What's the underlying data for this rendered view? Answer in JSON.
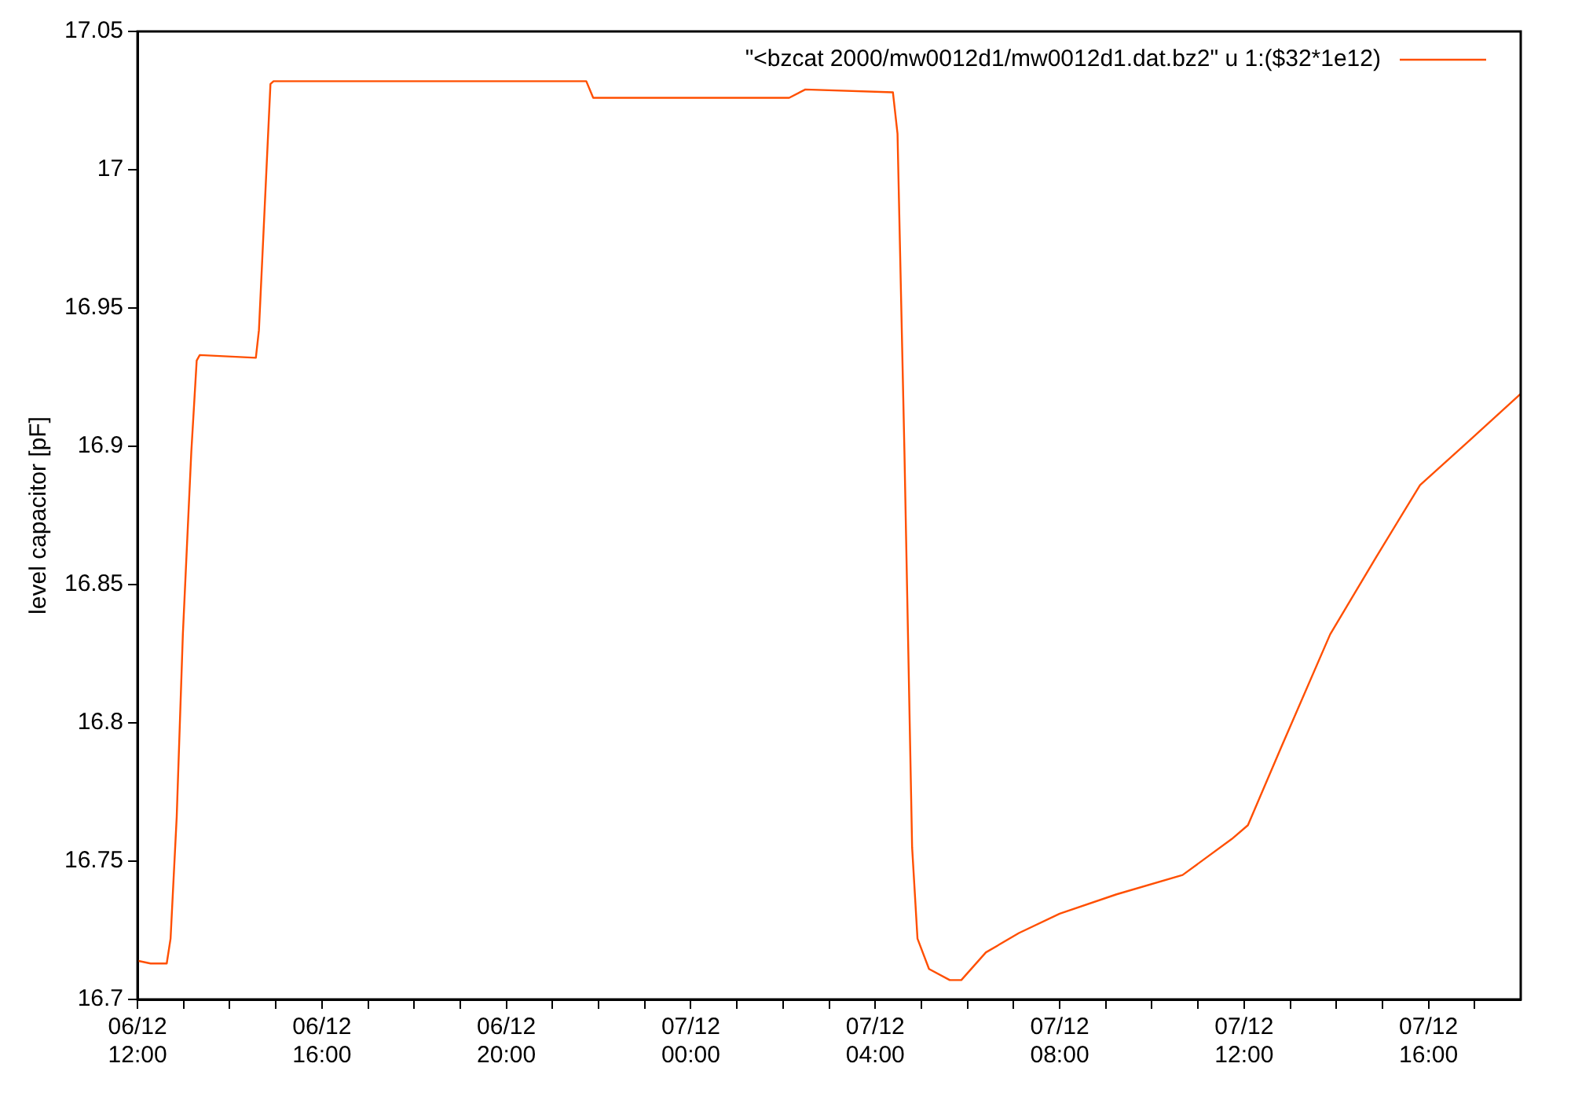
{
  "chart_data": {
    "type": "line",
    "ylabel": "level capacitor [pF]",
    "legend": "top right",
    "grid": false,
    "marker": "none",
    "line_style": "solid",
    "xlim": [
      "--12-06T12:00",
      "--12-07T18:00"
    ],
    "xticks": [
      {
        "value": "--12-06T12:00",
        "label": "06/12\n12:00"
      },
      {
        "value": "--12-06T13:00",
        "label": null
      },
      {
        "value": "--12-06T14:00",
        "label": null
      },
      {
        "value": "--12-06T15:00",
        "label": null
      },
      {
        "value": "--12-06T16:00",
        "label": "06/12\n16:00"
      },
      {
        "value": "--12-06T17:00",
        "label": null
      },
      {
        "value": "--12-06T18:00",
        "label": null
      },
      {
        "value": "--12-06T19:00",
        "label": null
      },
      {
        "value": "--12-06T20:00",
        "label": "06/12\n20:00"
      },
      {
        "value": "--12-06T21:00",
        "label": null
      },
      {
        "value": "--12-06T22:00",
        "label": null
      },
      {
        "value": "--12-06T23:00",
        "label": null
      },
      {
        "value": "--12-07T00:00",
        "label": "07/12\n00:00"
      },
      {
        "value": "--12-07T01:00",
        "label": null
      },
      {
        "value": "--12-07T02:00",
        "label": null
      },
      {
        "value": "--12-07T03:00",
        "label": null
      },
      {
        "value": "--12-07T04:00",
        "label": "07/12\n04:00"
      },
      {
        "value": "--12-07T05:00",
        "label": null
      },
      {
        "value": "--12-07T06:00",
        "label": null
      },
      {
        "value": "--12-07T07:00",
        "label": null
      },
      {
        "value": "--12-07T08:00",
        "label": "07/12\n08:00"
      },
      {
        "value": "--12-07T09:00",
        "label": null
      },
      {
        "value": "--12-07T10:00",
        "label": null
      },
      {
        "value": "--12-07T11:00",
        "label": null
      },
      {
        "value": "--12-07T12:00",
        "label": "07/12\n12:00"
      },
      {
        "value": "--12-07T13:00",
        "label": null
      },
      {
        "value": "--12-07T14:00",
        "label": null
      },
      {
        "value": "--12-07T15:00",
        "label": null
      },
      {
        "value": "--12-07T16:00",
        "label": "07/12\n16:00"
      },
      {
        "value": "--12-07T17:00",
        "label": null
      }
    ],
    "ylim": [
      16.7,
      17.05
    ],
    "yticks": [
      16.7,
      16.75,
      16.8,
      16.85,
      16.9,
      16.95,
      17,
      17.05
    ],
    "series": [
      {
        "name": "\"<bzcat 2000/mw0012d1/mw0012d1.dat.bz2\" u 1:($32*1e12)",
        "color": "#ff4f00",
        "x": [
          "--12-06T12:00",
          "--12-06T12:17",
          "--12-06T12:38",
          "--12-06T12:43",
          "--12-06T12:51",
          "--12-06T12:59",
          "--12-06T13:10",
          "--12-06T13:17",
          "--12-06T13:21",
          "--12-06T14:34",
          "--12-06T14:38",
          "--12-06T14:53",
          "--12-06T14:57",
          "--12-06T21:44",
          "--12-06T21:53",
          "--12-07T02:08",
          "--12-07T02:29",
          "--12-07T04:23",
          "--12-07T04:29",
          "--12-07T04:38",
          "--12-07T04:48",
          "--12-07T04:55",
          "--12-07T05:10",
          "--12-07T05:37",
          "--12-07T05:52",
          "--12-07T06:24",
          "--12-07T07:07",
          "--12-07T08:00",
          "--12-07T09:14",
          "--12-07T10:40",
          "--12-07T11:44",
          "--12-07T12:05",
          "--12-07T12:48",
          "--12-07T13:52",
          "--12-07T14:52",
          "--12-07T15:49",
          "--12-07T16:53",
          "--12-07T18:00"
        ],
        "values": [
          16.714,
          16.713,
          16.713,
          16.722,
          16.766,
          16.832,
          16.898,
          16.931,
          16.933,
          16.932,
          16.942,
          17.031,
          17.032,
          17.032,
          17.026,
          17.026,
          17.029,
          17.028,
          17.013,
          16.898,
          16.755,
          16.722,
          16.711,
          16.707,
          16.707,
          16.717,
          16.724,
          16.731,
          16.738,
          16.745,
          16.758,
          16.763,
          16.791,
          16.832,
          16.86,
          16.886,
          16.902,
          16.919
        ]
      }
    ]
  }
}
